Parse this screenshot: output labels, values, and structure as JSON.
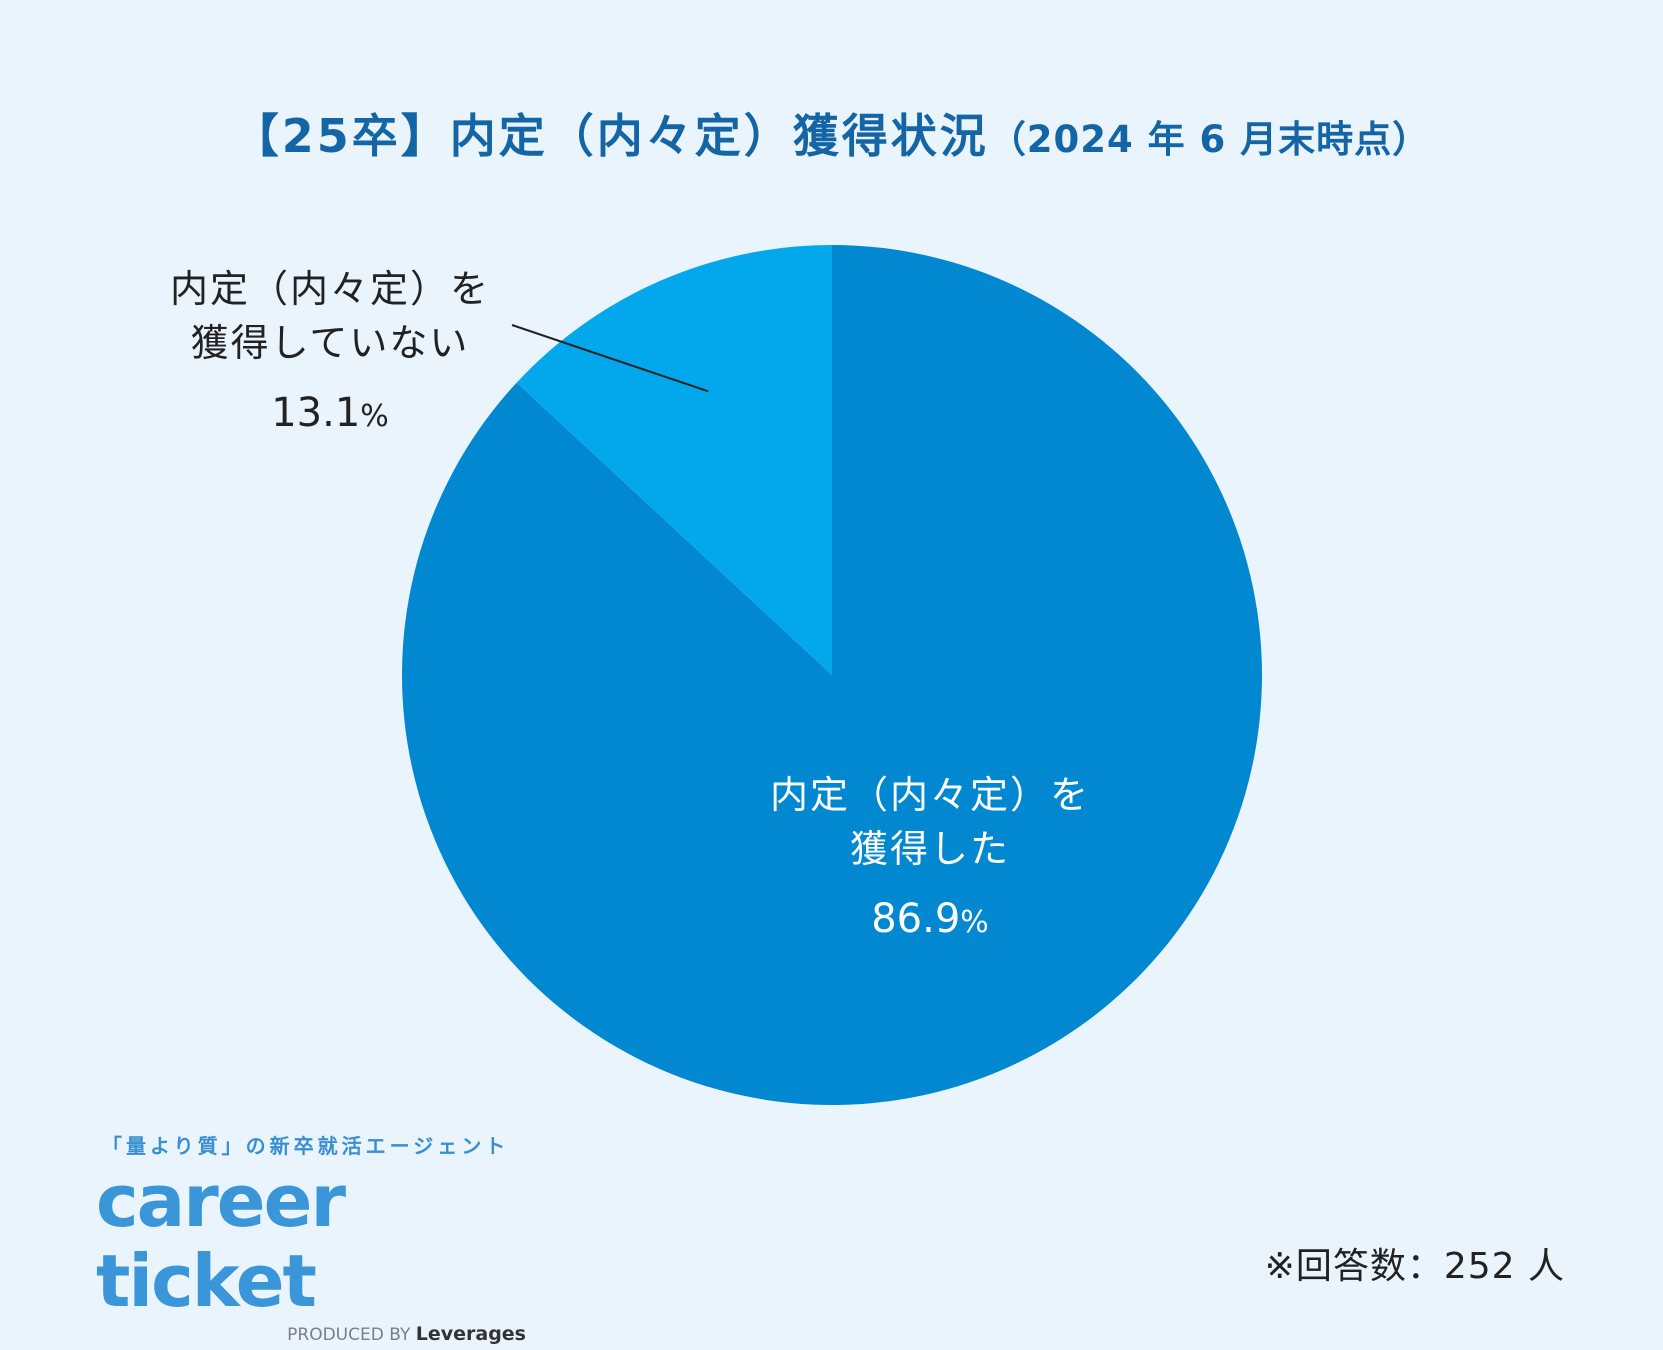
{
  "title": {
    "main": "【25卒】内定（内々定）獲得状況",
    "sub": "（2024 年 6 月末時点）"
  },
  "chart_data": {
    "type": "pie",
    "title": "【25卒】内定（内々定）獲得状況（2024 年 6 月末時点）",
    "slices": [
      {
        "label_line1": "内定（内々定）を",
        "label_line2": "獲得した",
        "value": 86.9,
        "value_text": "86.9",
        "unit": "%",
        "color": "#0288d1"
      },
      {
        "label_line1": "内定（内々定）を",
        "label_line2": "獲得していない",
        "value": 13.1,
        "value_text": "13.1",
        "unit": "%",
        "color": "#03a8ec"
      }
    ],
    "start_angle": "12 o'clock",
    "direction": "clockwise"
  },
  "footer": {
    "tagline": "「量より質」の新卒就活エージェント",
    "brand": "career ticket",
    "produced_by": "PRODUCED BY",
    "company": "Leverages",
    "respondents": "※回答数：252 人"
  }
}
